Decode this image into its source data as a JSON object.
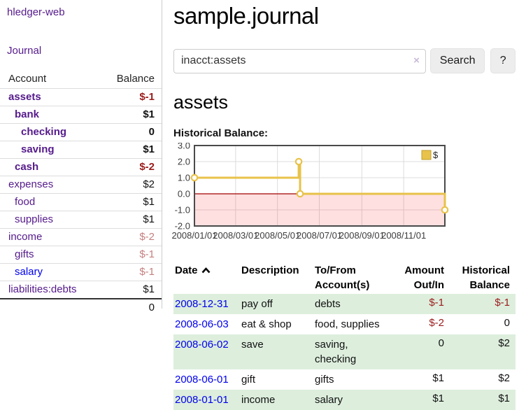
{
  "app": {
    "title": "hledger-web",
    "nav_journal": "Journal"
  },
  "sidebar": {
    "header": {
      "account": "Account",
      "balance": "Balance"
    },
    "accounts": [
      {
        "name": "assets",
        "balance": "$-1",
        "level": 0,
        "bold": true,
        "name_color": "purple",
        "balance_color": "red"
      },
      {
        "name": "bank",
        "balance": "$1",
        "level": 1,
        "bold": true,
        "name_color": "purple",
        "balance_color": "black"
      },
      {
        "name": "checking",
        "balance": "0",
        "level": 2,
        "bold": true,
        "name_color": "purple",
        "balance_color": "black"
      },
      {
        "name": "saving",
        "balance": "$1",
        "level": 2,
        "bold": true,
        "name_color": "purple",
        "balance_color": "black"
      },
      {
        "name": "cash",
        "balance": "$-2",
        "level": 1,
        "bold": true,
        "name_color": "purple",
        "balance_color": "red"
      },
      {
        "name": "expenses",
        "balance": "$2",
        "level": 0,
        "bold": false,
        "name_color": "purple",
        "balance_color": "black"
      },
      {
        "name": "food",
        "balance": "$1",
        "level": 1,
        "bold": false,
        "name_color": "purple",
        "balance_color": "black"
      },
      {
        "name": "supplies",
        "balance": "$1",
        "level": 1,
        "bold": false,
        "name_color": "purple",
        "balance_color": "black"
      },
      {
        "name": "income",
        "balance": "$-2",
        "level": 0,
        "bold": false,
        "name_color": "purple",
        "balance_color": "rose"
      },
      {
        "name": "gifts",
        "balance": "$-1",
        "level": 1,
        "bold": false,
        "name_color": "purple",
        "balance_color": "rose"
      },
      {
        "name": "salary",
        "balance": "$-1",
        "level": 1,
        "bold": false,
        "name_color": "blue",
        "balance_color": "rose"
      },
      {
        "name": "liabilities:debts",
        "balance": "$1",
        "level": 0,
        "bold": false,
        "name_color": "purple",
        "balance_color": "black"
      }
    ],
    "total": "0"
  },
  "main": {
    "title": "sample.journal",
    "search": {
      "value": "inacct:assets",
      "clear_icon": "×",
      "button": "Search",
      "help": "?"
    },
    "account_heading": "assets",
    "chart_heading": "Historical Balance:"
  },
  "chart_data": {
    "type": "line",
    "step": true,
    "title": "Historical Balance:",
    "series": [
      {
        "name": "$",
        "color": "#e8c24a",
        "points": [
          [
            "2008-01-01",
            1
          ],
          [
            "2008-06-01",
            2
          ],
          [
            "2008-06-03",
            0
          ],
          [
            "2008-12-31",
            -1
          ]
        ]
      }
    ],
    "xlim": [
      "2008-01-01",
      "2008-12-31"
    ],
    "ylim": [
      -2,
      3
    ],
    "y_ticks": [
      "3.0",
      "2.0",
      "1.0",
      "0.0",
      "-1.0",
      "-2.0"
    ],
    "x_ticks": [
      "2008/01/01",
      "2008/03/01",
      "2008/05/01",
      "2008/07/01",
      "2008/09/01",
      "2008/11/01"
    ],
    "grid": true,
    "legend_position": "top-right",
    "colors": {
      "line": "#e8c24a",
      "marker_fill": "#ffffff",
      "zero_line": "#a40000",
      "negative_region": "rgba(255,0,0,0.12)",
      "grid": "#dcdcdc",
      "border": "#4a4a4a",
      "tick_text": "#3c3c3c",
      "legend_box_border": "#bf9e2f"
    }
  },
  "table": {
    "headers": [
      {
        "label": "Date",
        "align": "left",
        "sorted": "asc"
      },
      {
        "label": "Description",
        "align": "left"
      },
      {
        "label": "To/From Account(s)",
        "align": "left"
      },
      {
        "label": "Amount Out/In",
        "align": "right"
      },
      {
        "label": "Historical Balance",
        "align": "right"
      }
    ],
    "rows": [
      {
        "date": "2008-12-31",
        "description": "pay off",
        "accounts": "debts",
        "amount": "$-1",
        "balance": "$-1",
        "amount_neg": true,
        "balance_neg": true
      },
      {
        "date": "2008-06-03",
        "description": "eat & shop",
        "accounts": "food, supplies",
        "amount": "$-2",
        "balance": "0",
        "amount_neg": true,
        "balance_neg": false
      },
      {
        "date": "2008-06-02",
        "description": "save",
        "accounts": "saving, checking",
        "amount": "0",
        "balance": "$2",
        "amount_neg": false,
        "balance_neg": false
      },
      {
        "date": "2008-06-01",
        "description": "gift",
        "accounts": "gifts",
        "amount": "$1",
        "balance": "$2",
        "amount_neg": false,
        "balance_neg": false
      },
      {
        "date": "2008-01-01",
        "description": "income",
        "accounts": "salary",
        "amount": "$1",
        "balance": "$1",
        "amount_neg": false,
        "balance_neg": false
      }
    ]
  }
}
